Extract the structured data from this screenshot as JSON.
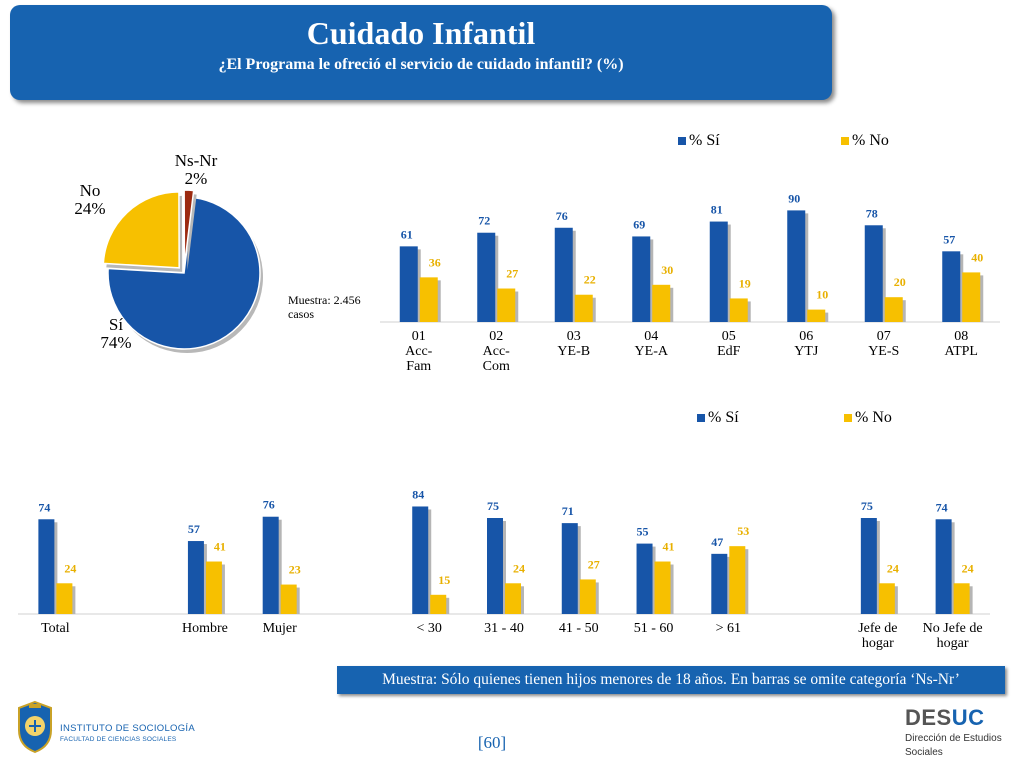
{
  "header": {
    "title": "Cuidado Infantil",
    "subtitle": "¿El Programa le ofreció el servicio de cuidado infantil? (%)"
  },
  "chart_data": [
    {
      "type": "pie",
      "slices": [
        {
          "label": "Sí",
          "value": 74,
          "text": "Sí\n74%",
          "color": "#1755a8"
        },
        {
          "label": "No",
          "value": 24,
          "text": "No\n24%",
          "color": "#f7c000"
        },
        {
          "label": "Ns-Nr",
          "value": 2,
          "text": "Ns-Nr\n2%",
          "color": "#9c2a10"
        }
      ],
      "annotation": "Muestra: 2.456\ncasos"
    },
    {
      "type": "bar",
      "legend": [
        "% Sí",
        "% No"
      ],
      "categories": [
        "01\nAcc-\nFam",
        "02\nAcc-\nCom",
        "03\nYE-B",
        "04\nYE-A",
        "05\nEdF",
        "06\nYTJ",
        "07\nYE-S",
        "08\nATPL"
      ],
      "series": [
        {
          "name": "% Sí",
          "values": [
            61,
            72,
            76,
            69,
            81,
            90,
            78,
            57
          ]
        },
        {
          "name": "% No",
          "values": [
            36,
            27,
            22,
            30,
            19,
            10,
            20,
            40
          ]
        }
      ],
      "ylim": [
        0,
        100
      ]
    },
    {
      "type": "bar",
      "legend": [
        "% Sí",
        "% No"
      ],
      "categories": [
        "Total",
        "",
        "Hombre",
        "Mujer",
        "",
        "< 30",
        "31 - 40",
        "41 - 50",
        "51 - 60",
        "> 61",
        "",
        "Jefe de\nhogar",
        "No Jefe de\nhogar"
      ],
      "series": [
        {
          "name": "% Sí",
          "values": [
            74,
            null,
            57,
            76,
            null,
            84,
            75,
            71,
            55,
            47,
            null,
            75,
            74
          ]
        },
        {
          "name": "% No",
          "values": [
            24,
            null,
            41,
            23,
            null,
            15,
            24,
            27,
            41,
            53,
            null,
            24,
            24
          ]
        }
      ],
      "ylim": [
        0,
        100
      ]
    }
  ],
  "colors": {
    "si": "#1755a8",
    "no": "#f7c000",
    "nsnr": "#9c2a10",
    "label_si": "#1755a8",
    "label_no": "#e8b000"
  },
  "footer": {
    "note": "Muestra: Sólo quienes tienen hijos menores de 18 años. En barras se omite categoría ‘Ns-Nr’",
    "page": "[60]",
    "institute_line1": "INSTITUTO DE SOCIOLOGÍA",
    "institute_line2": "FACULTAD DE CIENCIAS SOCIALES",
    "desuc_de": "DES",
    "desuc_uc": "UC",
    "desuc_sub1": "Dirección de Estudios",
    "desuc_sub2": "Sociales"
  }
}
